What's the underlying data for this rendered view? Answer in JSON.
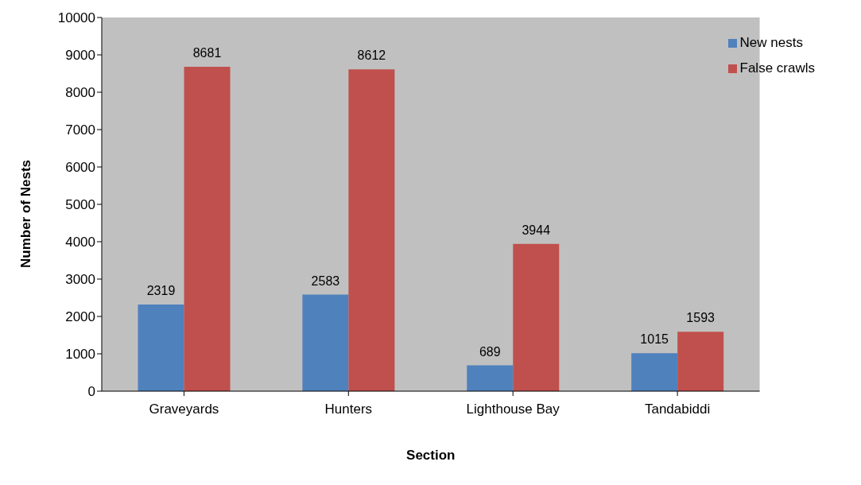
{
  "chart_data": {
    "type": "bar",
    "xlabel": "Section",
    "ylabel": "Number of Nests",
    "categories": [
      "Graveyards",
      "Hunters",
      "Lighthouse Bay",
      "Tandabiddi"
    ],
    "series": [
      {
        "name": "New nests",
        "color": "#4f81bd",
        "values": [
          2319,
          2583,
          689,
          1015
        ]
      },
      {
        "name": "False crawls",
        "color": "#c0504d",
        "values": [
          8681,
          8612,
          3944,
          1593
        ]
      }
    ],
    "ylim": [
      0,
      10000
    ],
    "yticks": [
      0,
      1000,
      2000,
      3000,
      4000,
      5000,
      6000,
      7000,
      8000,
      9000,
      10000
    ],
    "grid": false,
    "legend": "top right",
    "data_labels": true
  }
}
